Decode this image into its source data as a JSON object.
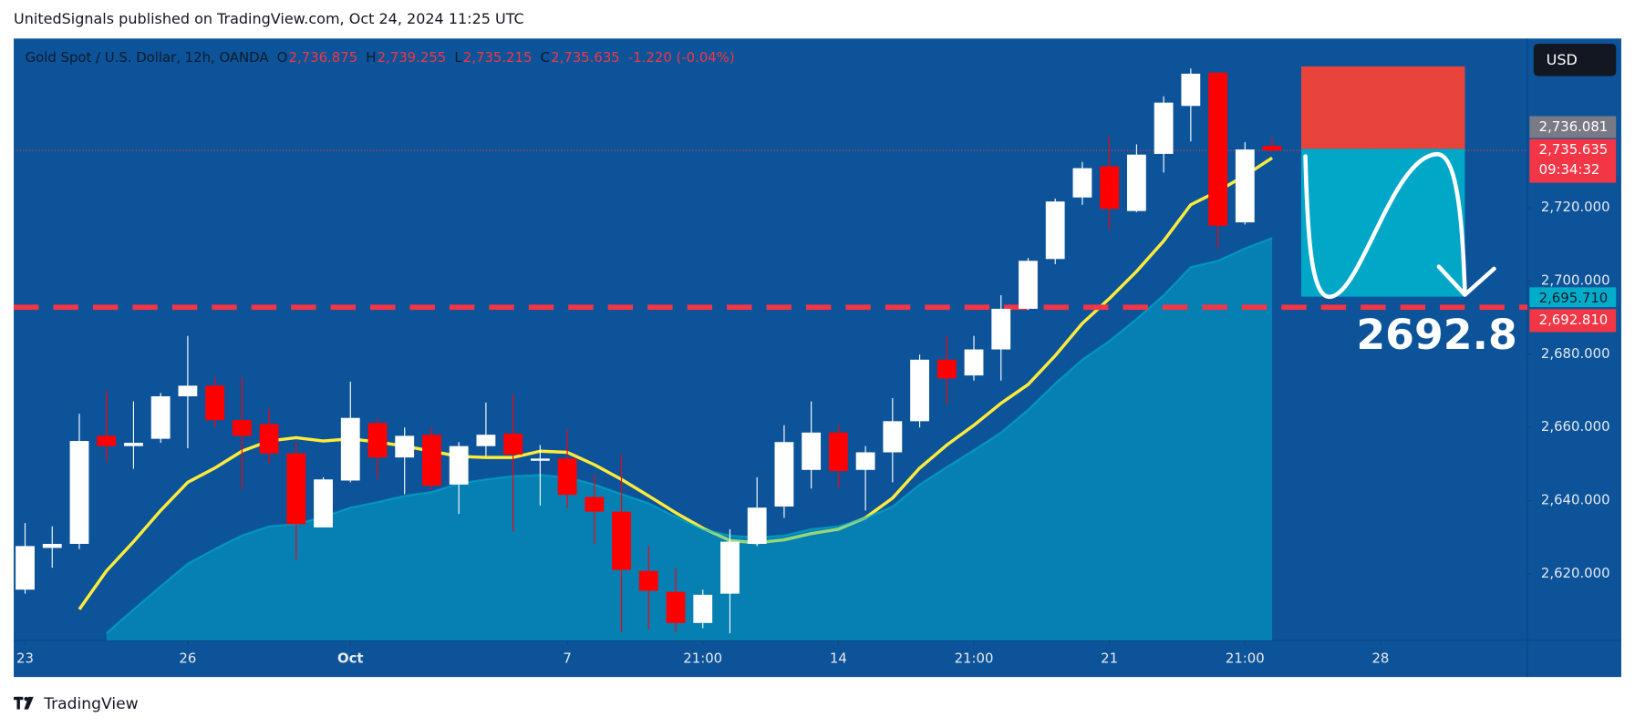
{
  "page": {
    "published": "UnitedSignals published on TradingView.com, Oct 24, 2024 11:25 UTC",
    "brand": "TradingView"
  },
  "chart_data": {
    "type": "candlestick",
    "header": {
      "symbol": "Gold Spot / U.S. Dollar, 12h, OANDA",
      "ohlc": [
        {
          "letter": "O",
          "label": "2,736.875"
        },
        {
          "letter": "H",
          "label": "2,739.255"
        },
        {
          "letter": "L",
          "label": "2,735.215"
        },
        {
          "letter": "C",
          "label": "2,735.635"
        }
      ],
      "change": "-1.220 (-0.04%)"
    },
    "currency": "USD",
    "up_color": "#ffffff",
    "down_color": "#ff0000",
    "open": [
      2615.7,
      2627.1,
      2628.2,
      2657.7,
      2654.9,
      2656.9,
      2668.5,
      2671.4,
      2662.0,
      2660.9,
      2652.9,
      2632.7,
      2645.5,
      2661.2,
      2651.8,
      2658.0,
      2644.4,
      2654.9,
      2658.3,
      2650.9,
      2651.5,
      2641.0,
      2637.0,
      2620.8,
      2615.1,
      2606.6,
      2614.6,
      2628.2,
      2638.4,
      2648.4,
      2658.6,
      2648.4,
      2653.2,
      2661.7,
      2678.5,
      2674.2,
      2681.3,
      2692.4,
      2706.0,
      2722.8,
      2731.3,
      2719.1,
      2734.7,
      2747.8,
      2756.9,
      2716.0,
      2736.875
    ],
    "high": [
      2633.9,
      2633.0,
      2663.7,
      2670.0,
      2667.1,
      2669.4,
      2685.0,
      2673.7,
      2673.7,
      2665.1,
      2655.8,
      2646.4,
      2672.5,
      2662.3,
      2660.0,
      2660.0,
      2656.0,
      2666.8,
      2669.1,
      2655.2,
      2659.5,
      2647.0,
      2652.6,
      2627.6,
      2621.7,
      2615.7,
      2632.2,
      2646.4,
      2660.6,
      2667.1,
      2660.6,
      2654.9,
      2668.0,
      2679.9,
      2685.0,
      2685.0,
      2696.1,
      2706.3,
      2722.5,
      2732.5,
      2739.6,
      2737.3,
      2750.4,
      2758.0,
      2756.9,
      2737.9,
      2739.255
    ],
    "low": [
      2614.6,
      2621.7,
      2626.8,
      2650.6,
      2648.7,
      2655.8,
      2654.3,
      2660.0,
      2643.0,
      2650.1,
      2623.9,
      2632.7,
      2645.0,
      2646.1,
      2641.8,
      2643.0,
      2636.4,
      2652.1,
      2631.6,
      2638.7,
      2637.9,
      2628.2,
      2604.1,
      2604.9,
      2604.1,
      2605.2,
      2603.8,
      2627.6,
      2635.3,
      2643.3,
      2643.5,
      2637.3,
      2645.0,
      2660.0,
      2666.3,
      2672.8,
      2672.8,
      2692.1,
      2704.6,
      2720.8,
      2714.0,
      2718.8,
      2729.6,
      2738.1,
      2708.9,
      2715.4,
      2735.215
    ],
    "close": [
      2627.6,
      2628.2,
      2656.3,
      2654.9,
      2655.8,
      2668.5,
      2671.4,
      2662.0,
      2657.7,
      2652.9,
      2633.6,
      2645.8,
      2662.6,
      2651.8,
      2657.7,
      2644.1,
      2654.9,
      2658.0,
      2652.6,
      2651.5,
      2641.6,
      2637.0,
      2621.1,
      2615.4,
      2606.6,
      2614.3,
      2628.8,
      2638.1,
      2656.0,
      2658.6,
      2648.1,
      2653.2,
      2661.7,
      2678.5,
      2673.4,
      2681.3,
      2692.4,
      2705.5,
      2721.7,
      2730.8,
      2719.7,
      2734.5,
      2748.7,
      2756.6,
      2715.1,
      2735.9,
      2735.635
    ],
    "overlays": [
      {
        "type": "area",
        "color": "#00bcd4",
        "values": [
          null,
          null,
          null,
          2603.8,
          2610.3,
          2616.6,
          2622.8,
          2626.8,
          2630.5,
          2633.0,
          2633.6,
          2635.6,
          2638.1,
          2639.6,
          2641.3,
          2642.4,
          2644.7,
          2645.8,
          2646.7,
          2647.0,
          2646.4,
          2644.4,
          2641.8,
          2639.3,
          2635.6,
          2632.2,
          2630.5,
          2629.9,
          2630.5,
          2632.2,
          2633.0,
          2635.3,
          2638.4,
          2644.4,
          2649.2,
          2653.8,
          2658.6,
          2664.8,
          2672.0,
          2678.5,
          2683.6,
          2689.6,
          2696.1,
          2703.8,
          2705.5,
          2708.9,
          2711.7
        ]
      },
      {
        "type": "line",
        "color": "#ffeb3b",
        "values": [
          null,
          null,
          2610.3,
          2620.8,
          2628.8,
          2637.3,
          2645.0,
          2648.9,
          2653.5,
          2656.3,
          2657.2,
          2656.3,
          2656.9,
          2656.0,
          2654.9,
          2653.5,
          2652.1,
          2651.8,
          2651.8,
          2653.5,
          2653.2,
          2649.8,
          2645.8,
          2641.3,
          2636.7,
          2632.5,
          2629.1,
          2628.5,
          2629.3,
          2631.0,
          2632.2,
          2635.3,
          2640.7,
          2648.9,
          2655.2,
          2660.6,
          2666.6,
          2671.7,
          2679.6,
          2688.4,
          2695.2,
          2702.6,
          2710.9,
          2720.8,
          2724.5,
          2728.8,
          2733.6
        ]
      }
    ],
    "xlim": [
      -0.42,
      55.42
    ],
    "xticks": [
      {
        "value": 0,
        "label": "23"
      },
      {
        "value": 6,
        "label": "26"
      },
      {
        "value": 12,
        "label": "Oct"
      },
      {
        "value": 20,
        "label": "7"
      },
      {
        "value": 25,
        "label": "21:00"
      },
      {
        "value": 30,
        "label": "14"
      },
      {
        "value": 35,
        "label": "21:00"
      },
      {
        "value": 40,
        "label": "21"
      },
      {
        "value": 45,
        "label": "21:00"
      },
      {
        "value": 50,
        "label": "28"
      }
    ],
    "ylim": [
      2601.8,
      2766.2
    ],
    "yticks": [
      {
        "value": 2620,
        "label": "2,620.000"
      },
      {
        "value": 2640,
        "label": "2,640.000"
      },
      {
        "value": 2660,
        "label": "2,660.000"
      },
      {
        "value": 2680,
        "label": "2,680.000"
      },
      {
        "value": 2700,
        "label": "2,700.000"
      },
      {
        "value": 2720,
        "label": "2,720.000"
      }
    ],
    "grid": false,
    "current_price": {
      "value": 2735.635,
      "label": "2,735.635",
      "countdown": "09:34:32",
      "color": "#f23645"
    },
    "position": {
      "stop": 2758.6,
      "stop_color": "#f44336",
      "entry": {
        "value": 2736.081,
        "label": "2,736.081",
        "color": "#787b86"
      },
      "target": {
        "value": 2695.71,
        "label": "2,695.710",
        "color": "#00acc9"
      }
    },
    "level": {
      "value": 2692.81,
      "label": "2,692.810",
      "annotation": "2692.8",
      "color": "#f23645"
    }
  }
}
